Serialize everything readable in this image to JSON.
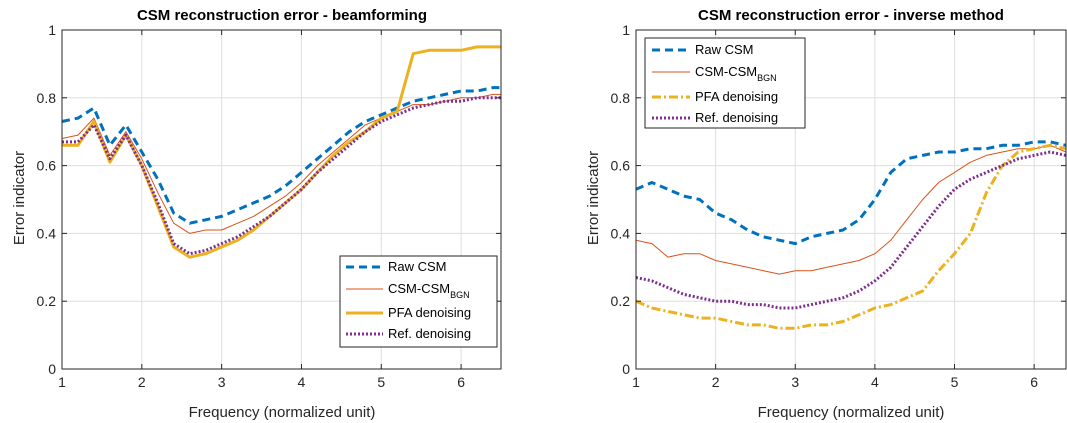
{
  "chart_data": [
    {
      "type": "line",
      "title": "CSM reconstruction error - beamforming",
      "xlabel": "Frequency (normalized unit)",
      "ylabel": "Error indicator",
      "xlim": [
        1,
        6.5
      ],
      "ylim": [
        0,
        1
      ],
      "xticks": [
        "1",
        "2",
        "3",
        "4",
        "5",
        "6"
      ],
      "yticks": [
        "0",
        "0.2",
        "0.4",
        "0.6",
        "0.8",
        "1"
      ],
      "grid": true,
      "legend_position": "bottom-right",
      "x": [
        1.0,
        1.2,
        1.4,
        1.6,
        1.8,
        2.0,
        2.2,
        2.4,
        2.6,
        2.8,
        3.0,
        3.2,
        3.4,
        3.6,
        3.8,
        4.0,
        4.2,
        4.4,
        4.6,
        4.8,
        5.0,
        5.2,
        5.4,
        5.6,
        5.8,
        6.0,
        6.2,
        6.4,
        6.5
      ],
      "series": [
        {
          "name": "Raw CSM",
          "values": [
            0.73,
            0.74,
            0.77,
            0.66,
            0.72,
            0.64,
            0.56,
            0.46,
            0.43,
            0.44,
            0.45,
            0.47,
            0.49,
            0.51,
            0.54,
            0.58,
            0.62,
            0.66,
            0.7,
            0.73,
            0.75,
            0.77,
            0.79,
            0.8,
            0.81,
            0.82,
            0.82,
            0.83,
            0.83
          ]
        },
        {
          "name": "CSM-CSM",
          "name_sub": "BGN",
          "values": [
            0.68,
            0.69,
            0.74,
            0.63,
            0.7,
            0.62,
            0.52,
            0.43,
            0.4,
            0.41,
            0.41,
            0.43,
            0.45,
            0.48,
            0.51,
            0.55,
            0.6,
            0.64,
            0.68,
            0.72,
            0.74,
            0.76,
            0.78,
            0.78,
            0.79,
            0.8,
            0.8,
            0.81,
            0.81
          ]
        },
        {
          "name": "PFA denoising",
          "values": [
            0.66,
            0.66,
            0.73,
            0.61,
            0.69,
            0.6,
            0.48,
            0.36,
            0.33,
            0.34,
            0.36,
            0.38,
            0.41,
            0.45,
            0.49,
            0.53,
            0.58,
            0.63,
            0.67,
            0.7,
            0.74,
            0.76,
            0.93,
            0.94,
            0.94,
            0.94,
            0.95,
            0.95,
            0.95
          ]
        },
        {
          "name": "Ref. denoising",
          "values": [
            0.67,
            0.67,
            0.72,
            0.62,
            0.69,
            0.6,
            0.49,
            0.37,
            0.34,
            0.35,
            0.37,
            0.39,
            0.42,
            0.45,
            0.49,
            0.53,
            0.58,
            0.62,
            0.66,
            0.7,
            0.73,
            0.75,
            0.77,
            0.78,
            0.79,
            0.79,
            0.8,
            0.8,
            0.8
          ]
        }
      ]
    },
    {
      "type": "line",
      "title": "CSM reconstruction error - inverse method",
      "xlabel": "Frequency (normalized unit)",
      "ylabel": "Error indicator",
      "xlim": [
        1,
        6.4
      ],
      "ylim": [
        0,
        1
      ],
      "xticks": [
        "1",
        "2",
        "3",
        "4",
        "5",
        "6"
      ],
      "yticks": [
        "0",
        "0.2",
        "0.4",
        "0.6",
        "0.8",
        "1"
      ],
      "grid": true,
      "legend_position": "top-left",
      "x": [
        1.0,
        1.2,
        1.4,
        1.6,
        1.8,
        2.0,
        2.2,
        2.4,
        2.6,
        2.8,
        3.0,
        3.2,
        3.4,
        3.6,
        3.8,
        4.0,
        4.2,
        4.4,
        4.6,
        4.8,
        5.0,
        5.2,
        5.4,
        5.6,
        5.8,
        6.0,
        6.2,
        6.4
      ],
      "series": [
        {
          "name": "Raw CSM",
          "values": [
            0.53,
            0.55,
            0.53,
            0.51,
            0.5,
            0.46,
            0.44,
            0.41,
            0.39,
            0.38,
            0.37,
            0.39,
            0.4,
            0.41,
            0.44,
            0.5,
            0.58,
            0.62,
            0.63,
            0.64,
            0.64,
            0.65,
            0.65,
            0.66,
            0.66,
            0.67,
            0.67,
            0.66
          ]
        },
        {
          "name": "CSM-CSM",
          "name_sub": "BGN",
          "values": [
            0.38,
            0.37,
            0.33,
            0.34,
            0.34,
            0.32,
            0.31,
            0.3,
            0.29,
            0.28,
            0.29,
            0.29,
            0.3,
            0.31,
            0.32,
            0.34,
            0.38,
            0.44,
            0.5,
            0.55,
            0.58,
            0.61,
            0.63,
            0.64,
            0.65,
            0.65,
            0.66,
            0.64
          ]
        },
        {
          "name": "PFA denoising",
          "values": [
            0.2,
            0.18,
            0.17,
            0.16,
            0.15,
            0.15,
            0.14,
            0.13,
            0.13,
            0.12,
            0.12,
            0.13,
            0.13,
            0.14,
            0.16,
            0.18,
            0.19,
            0.21,
            0.23,
            0.29,
            0.34,
            0.4,
            0.52,
            0.6,
            0.64,
            0.65,
            0.66,
            0.65
          ]
        },
        {
          "name": "Ref. denoising",
          "values": [
            0.27,
            0.26,
            0.24,
            0.22,
            0.21,
            0.2,
            0.2,
            0.19,
            0.19,
            0.18,
            0.18,
            0.19,
            0.2,
            0.21,
            0.23,
            0.26,
            0.3,
            0.36,
            0.42,
            0.48,
            0.53,
            0.56,
            0.58,
            0.6,
            0.62,
            0.63,
            0.64,
            0.63
          ]
        }
      ]
    }
  ],
  "colors": {
    "Raw CSM": "#0072BD",
    "CSM-CSM_BGN": "#D95319",
    "PFA denoising": "#EDB120",
    "Ref. denoising": "#7E2F8E"
  }
}
